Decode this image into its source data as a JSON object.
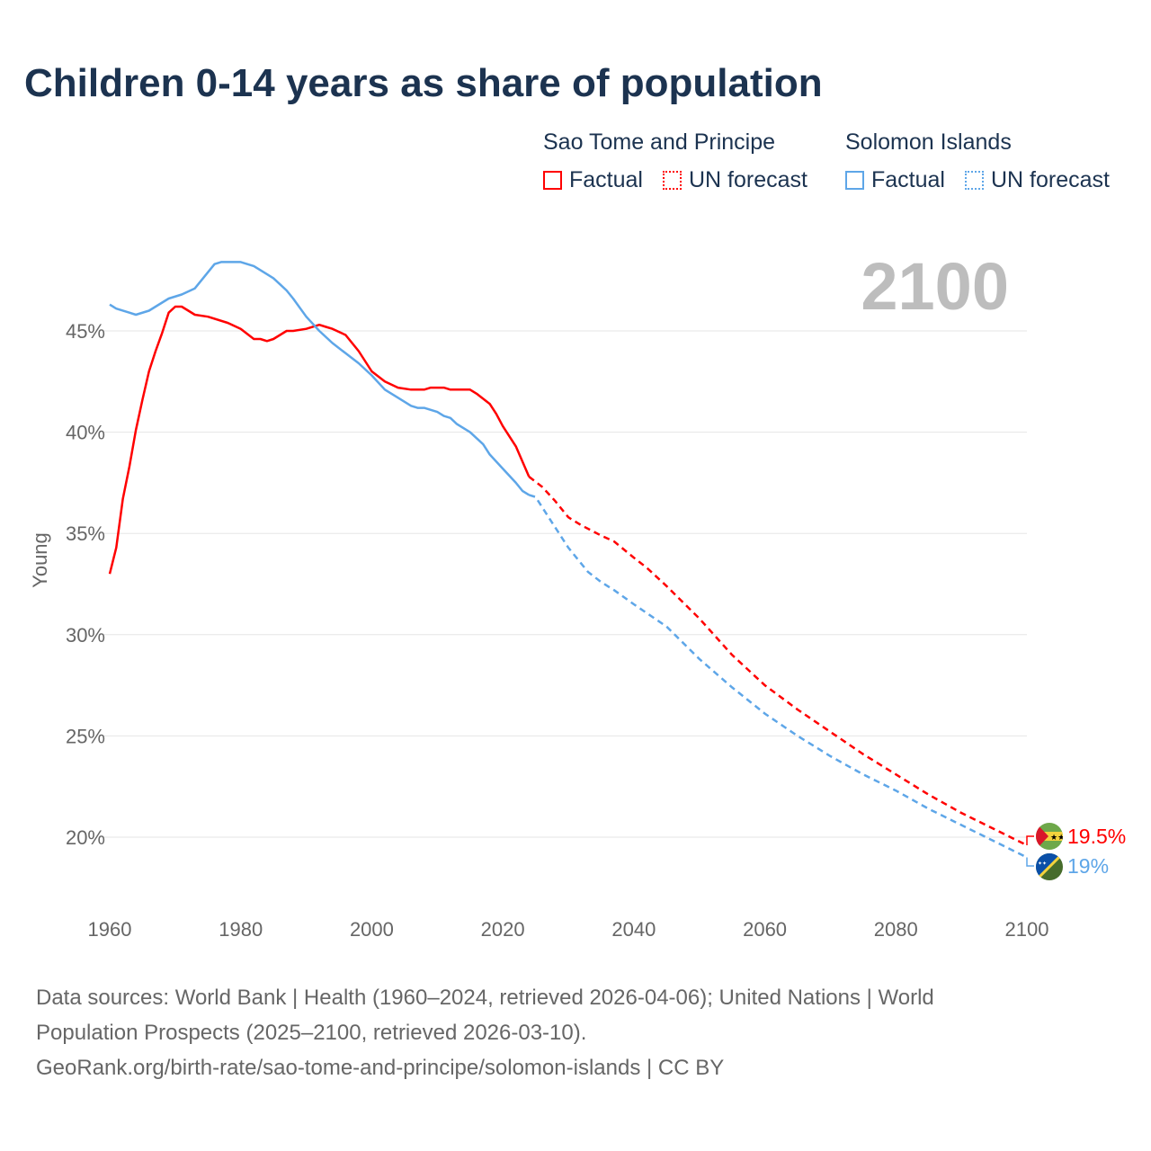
{
  "chart_data": {
    "type": "line",
    "title": "Children 0-14 years as share of population",
    "ylabel": "Young",
    "xlabel": "",
    "xlim": [
      1960,
      2100
    ],
    "ylim": [
      17.5,
      49
    ],
    "x_ticks": [
      "1960",
      "1980",
      "2000",
      "2020",
      "2040",
      "2060",
      "2080",
      "2100"
    ],
    "y_ticks": [
      "20%",
      "25%",
      "30%",
      "35%",
      "40%",
      "45%"
    ],
    "y_tick_values": [
      20,
      25,
      30,
      35,
      40,
      45
    ],
    "x_tick_values": [
      1960,
      1980,
      2000,
      2020,
      2040,
      2060,
      2080,
      2100
    ],
    "grid": true,
    "current_year": "2100",
    "factual_end_year": 2024,
    "legend": {
      "groups": [
        {
          "name": "Sao Tome and Principe",
          "factual": "Factual",
          "forecast": "UN forecast",
          "color": "#ff0000"
        },
        {
          "name": "Solomon Islands",
          "factual": "Factual",
          "forecast": "UN forecast",
          "color": "#5ea6e8"
        }
      ]
    },
    "series": [
      {
        "name": "Sao Tome and Principe",
        "color": "#ff0000",
        "end_label": "19.5%",
        "x": [
          1960,
          1961,
          1962,
          1963,
          1964,
          1965,
          1966,
          1967,
          1968,
          1969,
          1970,
          1971,
          1972,
          1973,
          1975,
          1978,
          1980,
          1982,
          1983,
          1984,
          1985,
          1987,
          1988,
          1990,
          1992,
          1993,
          1994,
          1996,
          1998,
          2000,
          2002,
          2004,
          2006,
          2008,
          2009,
          2011,
          2012,
          2015,
          2016,
          2018,
          2019,
          2020,
          2022,
          2024,
          2026,
          2028,
          2030,
          2032,
          2035,
          2037,
          2040,
          2042,
          2045,
          2050,
          2055,
          2060,
          2065,
          2070,
          2075,
          2080,
          2085,
          2090,
          2095,
          2100
        ],
        "values": [
          33.0,
          34.3,
          36.7,
          38.3,
          40.1,
          41.6,
          43.0,
          44.0,
          44.9,
          45.9,
          46.2,
          46.2,
          46.0,
          45.8,
          45.7,
          45.4,
          45.1,
          44.6,
          44.6,
          44.5,
          44.6,
          45.0,
          45.0,
          45.1,
          45.3,
          45.2,
          45.1,
          44.8,
          44.0,
          43.0,
          42.5,
          42.2,
          42.1,
          42.1,
          42.2,
          42.2,
          42.1,
          42.1,
          41.9,
          41.4,
          40.9,
          40.3,
          39.3,
          37.8,
          37.3,
          36.6,
          35.8,
          35.4,
          34.9,
          34.6,
          33.8,
          33.3,
          32.4,
          30.8,
          29.0,
          27.5,
          26.3,
          25.2,
          24.1,
          23.1,
          22.1,
          21.2,
          20.4,
          19.6
        ]
      },
      {
        "name": "Solomon Islands",
        "color": "#5ea6e8",
        "end_label": "19%",
        "x": [
          1960,
          1961,
          1963,
          1964,
          1966,
          1968,
          1969,
          1971,
          1973,
          1975,
          1976,
          1977,
          1979,
          1980,
          1982,
          1983,
          1984,
          1985,
          1986,
          1987,
          1988,
          1990,
          1992,
          1994,
          1996,
          1998,
          2000,
          2002,
          2004,
          2006,
          2007,
          2008,
          2010,
          2011,
          2012,
          2013,
          2015,
          2017,
          2018,
          2020,
          2022,
          2023,
          2024,
          2025,
          2027,
          2030,
          2033,
          2035,
          2037,
          2040,
          2045,
          2050,
          2055,
          2060,
          2065,
          2070,
          2075,
          2080,
          2085,
          2090,
          2095,
          2100
        ],
        "values": [
          46.3,
          46.1,
          45.9,
          45.8,
          46.0,
          46.4,
          46.6,
          46.8,
          47.1,
          47.9,
          48.3,
          48.4,
          48.4,
          48.4,
          48.2,
          48.0,
          47.8,
          47.6,
          47.3,
          47.0,
          46.6,
          45.7,
          45.0,
          44.4,
          43.9,
          43.4,
          42.8,
          42.1,
          41.7,
          41.3,
          41.2,
          41.2,
          41.0,
          40.8,
          40.7,
          40.4,
          40.0,
          39.4,
          38.9,
          38.2,
          37.5,
          37.1,
          36.9,
          36.8,
          35.8,
          34.3,
          33.1,
          32.6,
          32.2,
          31.5,
          30.4,
          28.8,
          27.4,
          26.1,
          25.0,
          24.0,
          23.1,
          22.3,
          21.4,
          20.6,
          19.8,
          19.0
        ]
      }
    ]
  },
  "footer": {
    "line1": "Data sources: World Bank | Health (1960–2024, retrieved 2026-04-06); United Nations | World",
    "line2": "Population Prospects (2025–2100, retrieved 2026-03-10).",
    "line3": "GeoRank.org/birth-rate/sao-tome-and-principe/solomon-islands | CC BY"
  }
}
